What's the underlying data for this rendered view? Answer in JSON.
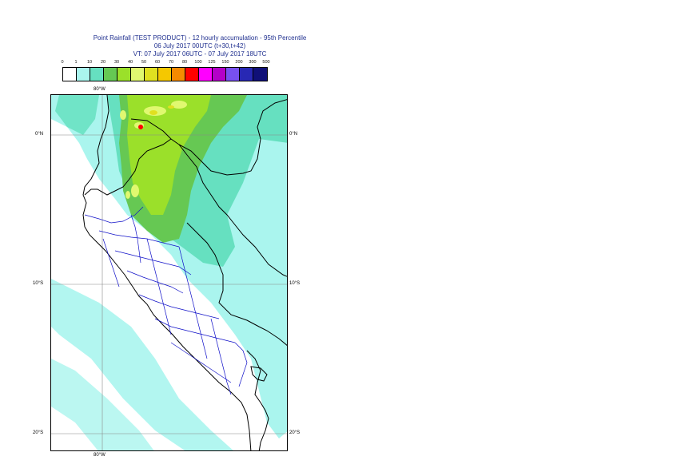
{
  "title": {
    "line1": "Point Rainfall (TEST PRODUCT) - 12 hourly accumulation - 95th Percentile",
    "line2": "06 July 2017 00UTC (t+30,t+42)",
    "line3": "VT: 07 July 2017 06UTC - 07 July 2017 18UTC"
  },
  "legend": {
    "ticks": [
      "0",
      "1",
      "10",
      "20",
      "30",
      "40",
      "50",
      "60",
      "70",
      "80",
      "100",
      "125",
      "150",
      "200",
      "300",
      "500"
    ],
    "colors": [
      "#ffffff",
      "#aaf5ee",
      "#66e0c0",
      "#66c853",
      "#9be02a",
      "#e0f870",
      "#e0e020",
      "#f5c800",
      "#f58a00",
      "#ff0000",
      "#ff00ff",
      "#b400c8",
      "#7850f0",
      "#2828b4",
      "#101078"
    ]
  },
  "map": {
    "lon_label_top": "80°W",
    "lon_label_bottom": "80°W",
    "lat_labels": [
      {
        "left": "0°N",
        "right": "0°N",
        "lat": 0
      },
      {
        "left": "10°S",
        "right": "10°S",
        "lat": -10
      },
      {
        "left": "20°S",
        "right": "20°S",
        "lat": -20
      }
    ],
    "colors": {
      "light_cyan": "#aaf5ee",
      "teal": "#66e0c0",
      "green": "#66c853",
      "yellow_green": "#9be02a",
      "pale_yellow": "#e0f870",
      "yellow": "#e0e020",
      "red": "#ff0000",
      "border_country": "#000000",
      "border_admin": "#1010c8",
      "graticule": "#888888"
    }
  }
}
